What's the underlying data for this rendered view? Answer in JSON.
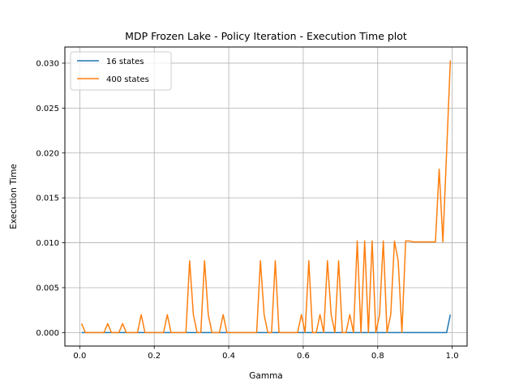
{
  "chart_data": {
    "type": "line",
    "title": "MDP Frozen Lake - Policy Iteration - Execution Time plot",
    "xlabel": "Gamma",
    "ylabel": "Execution Time",
    "xlim": [
      -0.04,
      1.04
    ],
    "ylim": [
      -0.0015,
      0.0318
    ],
    "xticks": [
      0.0,
      0.2,
      0.4,
      0.6,
      0.8,
      1.0
    ],
    "xtick_labels": [
      "0.0",
      "0.2",
      "0.4",
      "0.6",
      "0.8",
      "1.0"
    ],
    "yticks": [
      0.0,
      0.005,
      0.01,
      0.015,
      0.02,
      0.025,
      0.03
    ],
    "ytick_labels": [
      "0.000",
      "0.005",
      "0.010",
      "0.015",
      "0.020",
      "0.025",
      "0.030"
    ],
    "grid": true,
    "legend_position": "top-left",
    "x": [
      0.005,
      0.015,
      0.025,
      0.035,
      0.045,
      0.055,
      0.065,
      0.075,
      0.085,
      0.095,
      0.105,
      0.115,
      0.125,
      0.135,
      0.145,
      0.155,
      0.165,
      0.175,
      0.185,
      0.195,
      0.205,
      0.215,
      0.225,
      0.235,
      0.245,
      0.255,
      0.265,
      0.275,
      0.285,
      0.295,
      0.305,
      0.315,
      0.325,
      0.335,
      0.345,
      0.355,
      0.365,
      0.375,
      0.385,
      0.395,
      0.405,
      0.415,
      0.425,
      0.435,
      0.445,
      0.455,
      0.465,
      0.475,
      0.485,
      0.495,
      0.505,
      0.515,
      0.525,
      0.535,
      0.545,
      0.555,
      0.565,
      0.575,
      0.585,
      0.595,
      0.605,
      0.615,
      0.625,
      0.635,
      0.645,
      0.655,
      0.665,
      0.675,
      0.685,
      0.695,
      0.705,
      0.715,
      0.725,
      0.735,
      0.745,
      0.755,
      0.765,
      0.775,
      0.785,
      0.795,
      0.805,
      0.815,
      0.825,
      0.835,
      0.845,
      0.855,
      0.865,
      0.875,
      0.885,
      0.895,
      0.905,
      0.915,
      0.925,
      0.935,
      0.945,
      0.955,
      0.965,
      0.975,
      0.985,
      0.995
    ],
    "series": [
      {
        "name": "16 states",
        "color": "#1f77b4",
        "values": [
          0,
          0,
          0,
          0,
          0,
          0,
          0,
          0,
          0,
          0,
          0,
          0,
          0,
          0,
          0,
          0,
          0,
          0,
          0,
          0,
          0,
          0,
          0,
          0,
          0,
          0,
          0,
          0,
          0,
          0,
          0,
          0,
          0,
          0,
          0,
          0,
          0,
          0,
          0,
          0,
          0,
          0,
          0,
          0,
          0,
          0,
          0,
          0,
          0,
          0,
          0,
          0,
          0,
          0,
          0,
          0,
          0,
          0,
          0,
          0,
          0,
          0,
          0,
          0,
          0,
          0,
          0,
          0,
          0,
          0,
          0,
          0,
          0,
          0,
          0,
          0,
          0,
          0,
          0,
          0,
          0,
          0,
          0,
          0,
          0,
          0,
          0,
          0,
          0,
          0,
          0,
          0,
          0,
          0,
          0,
          0,
          0,
          0,
          0,
          0.002
        ]
      },
      {
        "name": "400 states",
        "color": "#ff7f0e",
        "values": [
          0.001,
          0,
          0,
          0,
          0,
          0,
          0,
          0.001,
          0,
          0,
          0,
          0.001,
          0,
          0,
          0,
          0,
          0.002,
          0,
          0,
          0,
          0,
          0,
          0,
          0.002,
          0,
          0,
          0,
          0,
          0,
          0.008,
          0.002,
          0,
          0,
          0.008,
          0.002,
          0,
          0,
          0,
          0.002,
          0,
          0,
          0,
          0,
          0,
          0,
          0,
          0,
          0,
          0.008,
          0.002,
          0,
          0,
          0.008,
          0,
          0,
          0,
          0,
          0,
          0,
          0.002,
          0,
          0.008,
          0,
          0,
          0.002,
          0,
          0.008,
          0.002,
          0,
          0.008,
          0,
          0,
          0.002,
          0,
          0.0102,
          0,
          0.0102,
          0,
          0.0102,
          0,
          0.002,
          0.0102,
          0,
          0.002,
          0.0102,
          0.008,
          0,
          0.0102,
          0.0102,
          0.0101,
          0.0101,
          0.0101,
          0.0101,
          0.0101,
          0.0101,
          0.0101,
          0.0182,
          0.0101,
          0.0201,
          0.0303
        ]
      }
    ]
  }
}
